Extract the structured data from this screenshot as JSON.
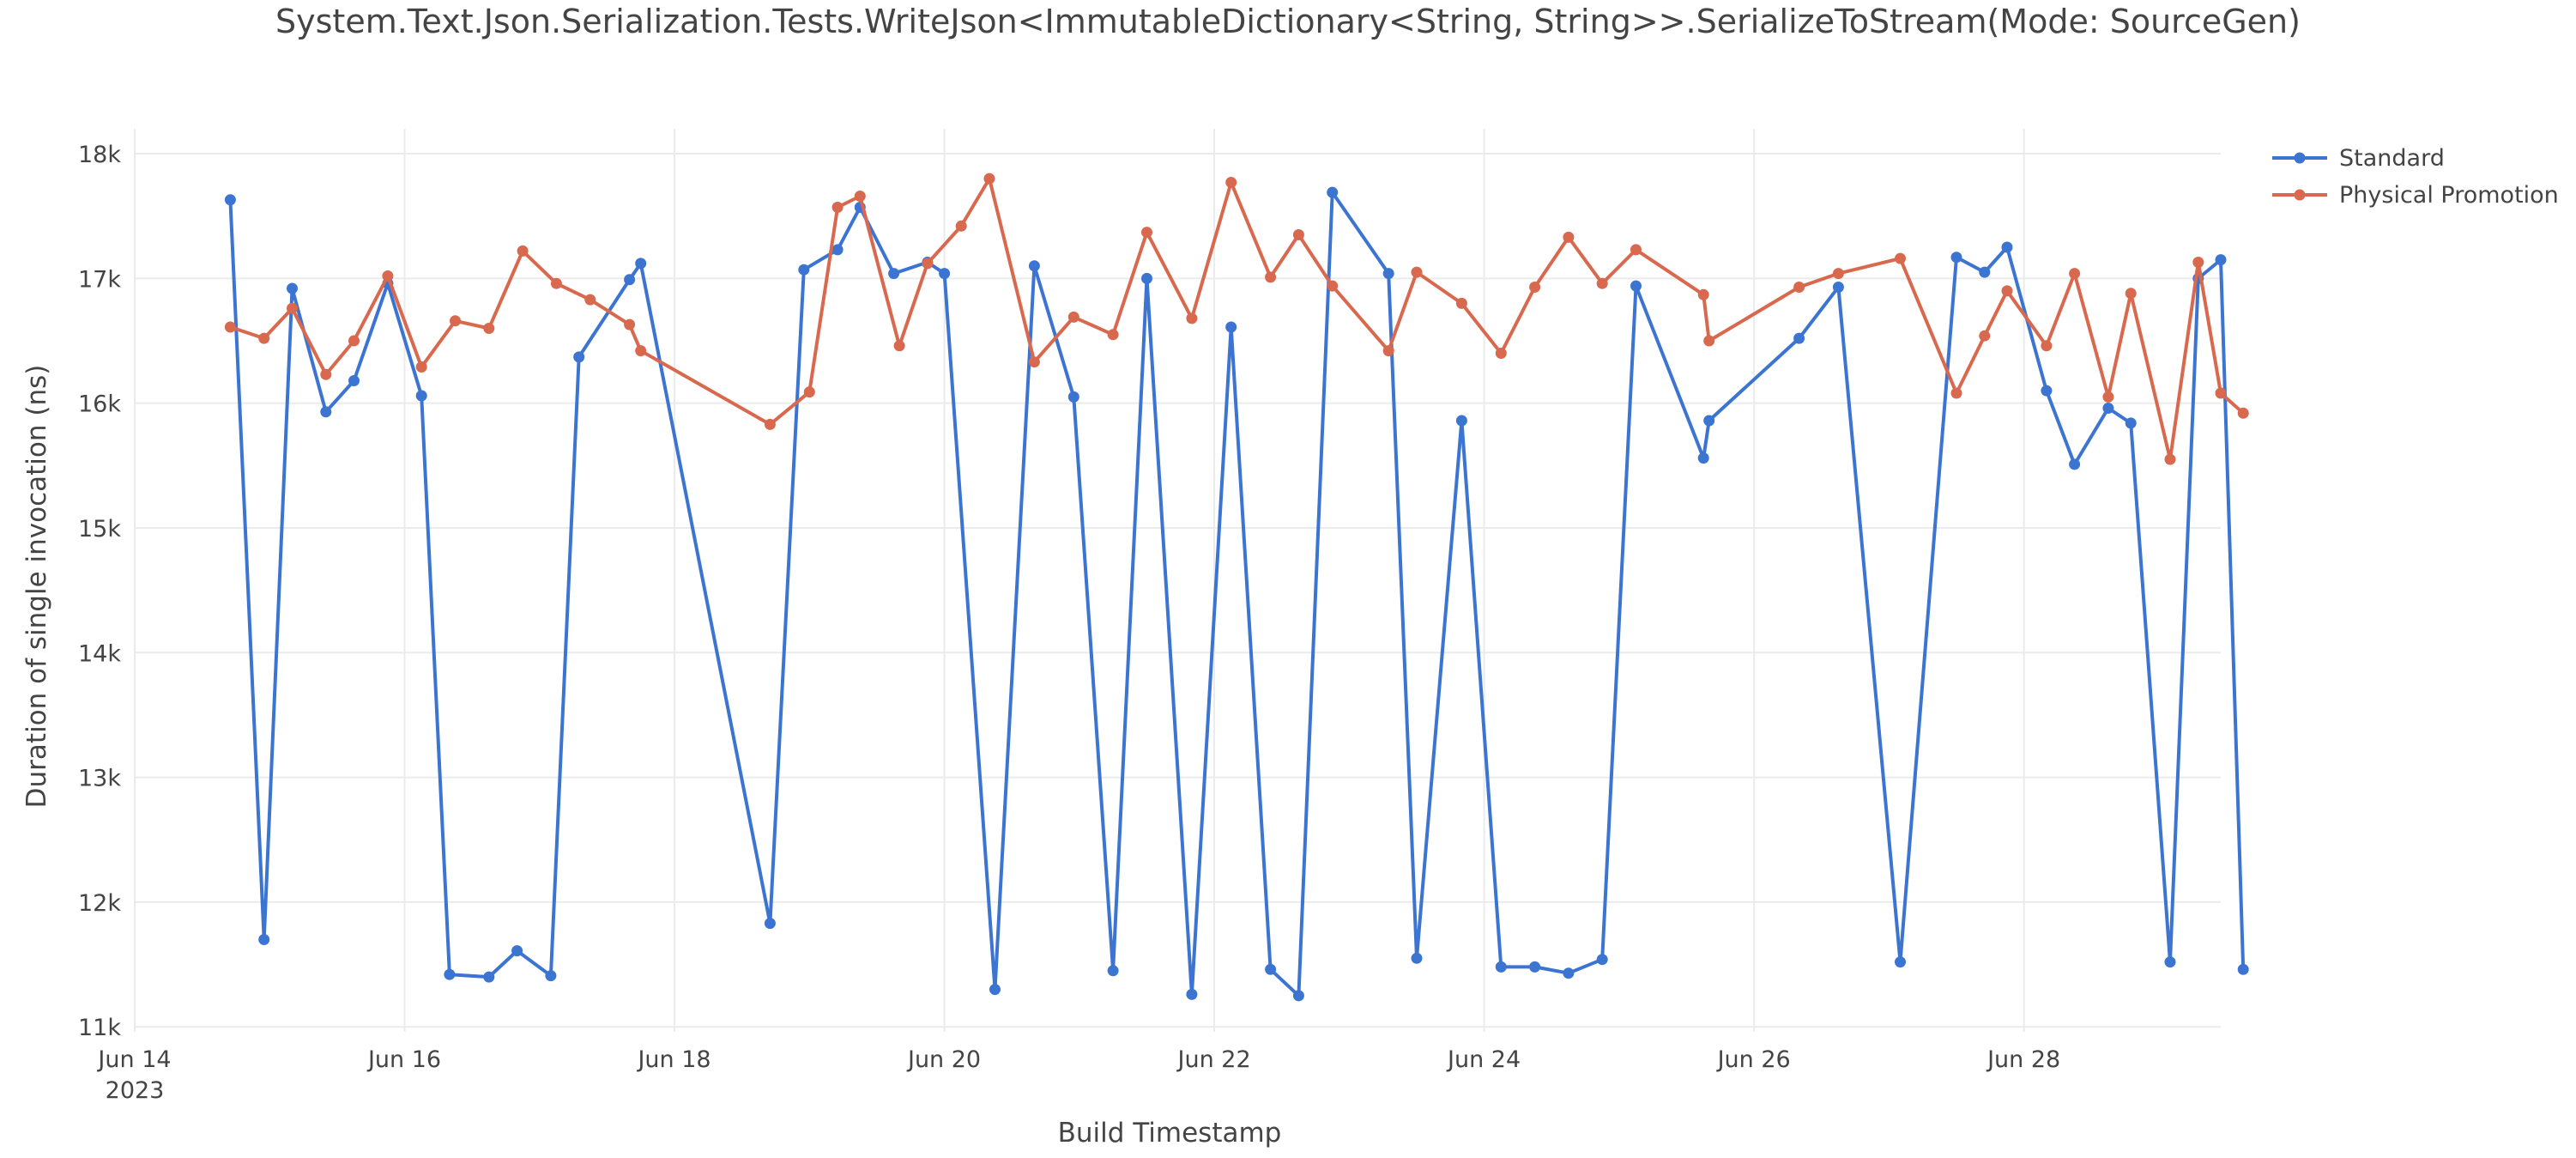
{
  "chart_data": {
    "type": "line",
    "title": "System.Text.Json.Serialization.Tests.WriteJson<ImmutableDictionary<String, String>>.SerializeToStream(Mode: SourceGen)",
    "xlabel": "Build Timestamp",
    "ylabel": "Duration of single invocation (ns)",
    "x_axis": {
      "kind": "date",
      "range": [
        "2023-06-14T00:00",
        "2023-06-29T11:00"
      ],
      "ticks": [
        {
          "date": "2023-06-14",
          "label": "Jun 14",
          "sublabel": "2023"
        },
        {
          "date": "2023-06-16",
          "label": "Jun 16"
        },
        {
          "date": "2023-06-18",
          "label": "Jun 18"
        },
        {
          "date": "2023-06-20",
          "label": "Jun 20"
        },
        {
          "date": "2023-06-22",
          "label": "Jun 22"
        },
        {
          "date": "2023-06-24",
          "label": "Jun 24"
        },
        {
          "date": "2023-06-26",
          "label": "Jun 26"
        },
        {
          "date": "2023-06-28",
          "label": "Jun 28"
        }
      ]
    },
    "y_axis": {
      "range": [
        10960,
        18200
      ],
      "ticks": [
        {
          "value": 11000,
          "label": "11k"
        },
        {
          "value": 12000,
          "label": "12k"
        },
        {
          "value": 13000,
          "label": "13k"
        },
        {
          "value": 14000,
          "label": "14k"
        },
        {
          "value": 15000,
          "label": "15k"
        },
        {
          "value": 16000,
          "label": "16k"
        },
        {
          "value": 17000,
          "label": "17k"
        },
        {
          "value": 18000,
          "label": "18k"
        }
      ]
    },
    "grid": true,
    "legend_position": "top-right",
    "series": [
      {
        "name": "Standard",
        "color": "#3c74d2",
        "points": [
          [
            "2023-06-14T17:00",
            17630
          ],
          [
            "2023-06-14T23:00",
            11700
          ],
          [
            "2023-06-15T04:00",
            16920
          ],
          [
            "2023-06-15T10:00",
            15930
          ],
          [
            "2023-06-15T15:00",
            16180
          ],
          [
            "2023-06-15T21:00",
            16960
          ],
          [
            "2023-06-16T03:00",
            16060
          ],
          [
            "2023-06-16T08:00",
            11420
          ],
          [
            "2023-06-16T15:00",
            11400
          ],
          [
            "2023-06-16T20:00",
            11610
          ],
          [
            "2023-06-17T02:00",
            11410
          ],
          [
            "2023-06-17T07:00",
            16370
          ],
          [
            "2023-06-17T16:00",
            16990
          ],
          [
            "2023-06-17T18:00",
            17120
          ],
          [
            "2023-06-18T17:00",
            11830
          ],
          [
            "2023-06-18T23:00",
            17070
          ],
          [
            "2023-06-19T05:00",
            17230
          ],
          [
            "2023-06-19T09:00",
            17570
          ],
          [
            "2023-06-19T15:00",
            17040
          ],
          [
            "2023-06-19T21:00",
            17130
          ],
          [
            "2023-06-20T00:00",
            17040
          ],
          [
            "2023-06-20T09:00",
            11300
          ],
          [
            "2023-06-20T16:00",
            17100
          ],
          [
            "2023-06-20T23:00",
            16050
          ],
          [
            "2023-06-21T06:00",
            11450
          ],
          [
            "2023-06-21T12:00",
            17000
          ],
          [
            "2023-06-21T20:00",
            11260
          ],
          [
            "2023-06-22T03:00",
            16610
          ],
          [
            "2023-06-22T10:00",
            11460
          ],
          [
            "2023-06-22T15:00",
            11250
          ],
          [
            "2023-06-22T21:00",
            17690
          ],
          [
            "2023-06-23T07:00",
            17040
          ],
          [
            "2023-06-23T12:00",
            11550
          ],
          [
            "2023-06-23T20:00",
            15860
          ],
          [
            "2023-06-24T03:00",
            11480
          ],
          [
            "2023-06-24T09:00",
            11480
          ],
          [
            "2023-06-24T15:00",
            11430
          ],
          [
            "2023-06-24T21:00",
            11540
          ],
          [
            "2023-06-25T03:00",
            16940
          ],
          [
            "2023-06-25T15:00",
            15560
          ],
          [
            "2023-06-25T16:00",
            15860
          ],
          [
            "2023-06-26T08:00",
            16520
          ],
          [
            "2023-06-26T15:00",
            16930
          ],
          [
            "2023-06-27T02:00",
            11520
          ],
          [
            "2023-06-27T12:00",
            17170
          ],
          [
            "2023-06-27T17:00",
            17050
          ],
          [
            "2023-06-27T21:00",
            17250
          ],
          [
            "2023-06-28T04:00",
            16100
          ],
          [
            "2023-06-28T09:00",
            15510
          ],
          [
            "2023-06-28T15:00",
            15960
          ],
          [
            "2023-06-28T19:00",
            15840
          ],
          [
            "2023-06-29T02:00",
            11520
          ],
          [
            "2023-06-29T07:00",
            17000
          ],
          [
            "2023-06-29T11:00",
            17150
          ],
          [
            "2023-06-29T15:00",
            11460
          ]
        ]
      },
      {
        "name": "Physical Promotion",
        "color": "#d9694e",
        "points": [
          [
            "2023-06-14T17:00",
            16610
          ],
          [
            "2023-06-14T23:00",
            16520
          ],
          [
            "2023-06-15T04:00",
            16760
          ],
          [
            "2023-06-15T10:00",
            16230
          ],
          [
            "2023-06-15T15:00",
            16500
          ],
          [
            "2023-06-15T21:00",
            17020
          ],
          [
            "2023-06-16T03:00",
            16290
          ],
          [
            "2023-06-16T09:00",
            16660
          ],
          [
            "2023-06-16T15:00",
            16600
          ],
          [
            "2023-06-16T21:00",
            17220
          ],
          [
            "2023-06-17T03:00",
            16960
          ],
          [
            "2023-06-17T09:00",
            16830
          ],
          [
            "2023-06-17T16:00",
            16630
          ],
          [
            "2023-06-17T18:00",
            16420
          ],
          [
            "2023-06-18T17:00",
            15830
          ],
          [
            "2023-06-19T00:00",
            16090
          ],
          [
            "2023-06-19T05:00",
            17570
          ],
          [
            "2023-06-19T09:00",
            17660
          ],
          [
            "2023-06-19T16:00",
            16460
          ],
          [
            "2023-06-19T21:00",
            17120
          ],
          [
            "2023-06-20T03:00",
            17420
          ],
          [
            "2023-06-20T08:00",
            17800
          ],
          [
            "2023-06-20T16:00",
            16330
          ],
          [
            "2023-06-20T23:00",
            16690
          ],
          [
            "2023-06-21T06:00",
            16550
          ],
          [
            "2023-06-21T12:00",
            17370
          ],
          [
            "2023-06-21T20:00",
            16680
          ],
          [
            "2023-06-22T03:00",
            17770
          ],
          [
            "2023-06-22T10:00",
            17010
          ],
          [
            "2023-06-22T15:00",
            17350
          ],
          [
            "2023-06-22T21:00",
            16940
          ],
          [
            "2023-06-23T07:00",
            16420
          ],
          [
            "2023-06-23T12:00",
            17050
          ],
          [
            "2023-06-23T20:00",
            16800
          ],
          [
            "2023-06-24T03:00",
            16400
          ],
          [
            "2023-06-24T09:00",
            16930
          ],
          [
            "2023-06-24T15:00",
            17330
          ],
          [
            "2023-06-24T21:00",
            16960
          ],
          [
            "2023-06-25T03:00",
            17230
          ],
          [
            "2023-06-25T15:00",
            16870
          ],
          [
            "2023-06-25T16:00",
            16500
          ],
          [
            "2023-06-26T08:00",
            16930
          ],
          [
            "2023-06-26T15:00",
            17040
          ],
          [
            "2023-06-27T02:00",
            17160
          ],
          [
            "2023-06-27T12:00",
            16080
          ],
          [
            "2023-06-27T17:00",
            16540
          ],
          [
            "2023-06-27T21:00",
            16900
          ],
          [
            "2023-06-28T04:00",
            16460
          ],
          [
            "2023-06-28T09:00",
            17040
          ],
          [
            "2023-06-28T15:00",
            16050
          ],
          [
            "2023-06-28T19:00",
            16880
          ],
          [
            "2023-06-29T02:00",
            15550
          ],
          [
            "2023-06-29T07:00",
            17130
          ],
          [
            "2023-06-29T11:00",
            16080
          ],
          [
            "2023-06-29T15:00",
            15920
          ]
        ]
      }
    ]
  }
}
